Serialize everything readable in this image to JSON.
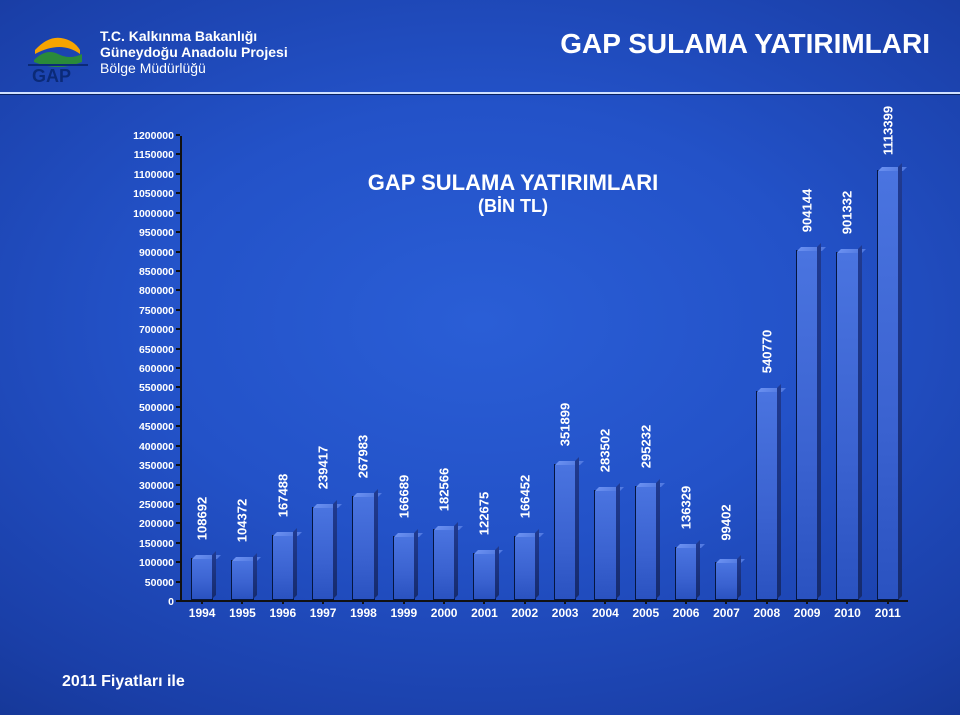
{
  "header": {
    "org_line1": "T.C. Kalkınma Bakanlığı",
    "org_line2": "Güneydoğu Anadolu Projesi",
    "org_line3": "Bölge Müdürlüğü",
    "page_title": "GAP SULAMA YATIRIMLARI",
    "logo": {
      "text": "GAP",
      "sun_fill": "#f7a400",
      "hill_fill": "#2a8a3a",
      "text_fill": "#0b2a78",
      "rule_fill": "#0b2a78"
    }
  },
  "chart": {
    "type": "bar",
    "title": "GAP SULAMA YATIRIMLARI",
    "subtitle": "(BİN TL)",
    "title_fontsize": 22,
    "subtitle_fontsize": 18,
    "bar_fill_top": "#4a74e0",
    "bar_fill_bottom": "#2a52c0",
    "bar_border": "#051640",
    "text_color": "#ffffff",
    "axis_color": "#111111",
    "y": {
      "min": 0,
      "max": 1200000,
      "step": 50000
    },
    "categories": [
      "1994",
      "1995",
      "1996",
      "1997",
      "1998",
      "1999",
      "2000",
      "2001",
      "2002",
      "2003",
      "2004",
      "2005",
      "2006",
      "2007",
      "2008",
      "2009",
      "2010",
      "2011"
    ],
    "values": [
      108692,
      104372,
      167488,
      239417,
      267983,
      166689,
      182566,
      122675,
      166452,
      351899,
      283502,
      295232,
      136329,
      99402,
      540770,
      904144,
      901332,
      1113399
    ]
  },
  "footer": {
    "note": "2011 Fiyatları ile"
  }
}
